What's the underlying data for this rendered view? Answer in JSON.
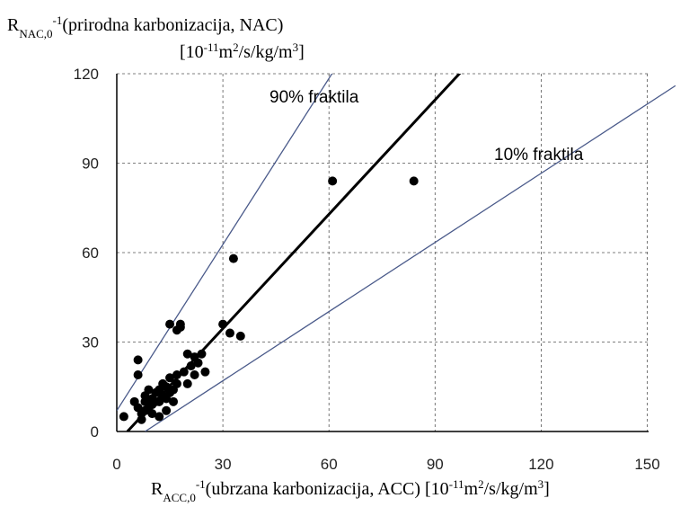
{
  "chart_data": {
    "type": "scatter",
    "ylabel": [
      [
        {
          "text": "R",
          "style": "normal"
        },
        {
          "text": "NAC,0",
          "style": "sub"
        },
        {
          "text": "-1",
          "style": "sup"
        },
        {
          "text": "(prirodna karbonizacija, NAC)",
          "style": "normal"
        }
      ],
      [
        {
          "text": "[10",
          "style": "normal"
        },
        {
          "text": "-11",
          "style": "sup"
        },
        {
          "text": "m",
          "style": "normal"
        },
        {
          "text": "2",
          "style": "sup"
        },
        {
          "text": "/s/kg/m",
          "style": "normal"
        },
        {
          "text": "3",
          "style": "sup"
        },
        {
          "text": "]",
          "style": "normal"
        }
      ]
    ],
    "xlabel": [
      {
        "text": "R",
        "style": "normal"
      },
      {
        "text": "ACC,0",
        "style": "sub"
      },
      {
        "text": "-1",
        "style": "sup"
      },
      {
        "text": "(ubrzana karbonizacija, ACC) [10",
        "style": "normal"
      },
      {
        "text": "-11",
        "style": "sup"
      },
      {
        "text": "m",
        "style": "normal"
      },
      {
        "text": "2",
        "style": "sup"
      },
      {
        "text": "/s/kg/m",
        "style": "normal"
      },
      {
        "text": "3",
        "style": "sup"
      },
      {
        "text": "]",
        "style": "normal"
      }
    ],
    "annotations": [
      "90% fraktila",
      "10% fraktila"
    ],
    "xlim": [
      0,
      158
    ],
    "ylim": [
      0,
      120
    ],
    "xticks": [
      0,
      30,
      60,
      90,
      120,
      150
    ],
    "yticks": [
      0,
      30,
      60,
      90,
      120
    ],
    "grid": true,
    "point_color": "#000000",
    "x": [
      2,
      6,
      6,
      5,
      6,
      7,
      7,
      8,
      8,
      9,
      10,
      10,
      11,
      12,
      12,
      13,
      13,
      14,
      14,
      15,
      15,
      16,
      16,
      17,
      17,
      18,
      17,
      18,
      15,
      19,
      20,
      20,
      21,
      22,
      22,
      23,
      24,
      25,
      30,
      32,
      33,
      35,
      61,
      84,
      12,
      14,
      10,
      8,
      9,
      11
    ],
    "y": [
      5,
      24,
      19,
      10,
      8,
      6,
      4,
      10,
      12,
      8,
      11,
      9,
      13,
      14,
      10,
      12,
      16,
      15,
      11,
      18,
      13,
      14,
      10,
      19,
      16,
      36,
      34,
      35,
      36,
      20,
      26,
      16,
      22,
      25,
      19,
      23,
      26,
      20,
      36,
      33,
      58,
      32,
      84,
      84,
      5,
      7,
      6,
      7,
      14,
      10
    ],
    "lines": [
      {
        "x": [
          3,
          100
        ],
        "y": [
          0,
          124
        ],
        "color": "#000000",
        "width": 3
      },
      {
        "x": [
          0,
          63
        ],
        "y": [
          7,
          124
        ],
        "color": "#4a5a8a",
        "width": 1.3
      },
      {
        "x": [
          8,
          158
        ],
        "y": [
          0,
          116
        ],
        "color": "#4a5a8a",
        "width": 1.3
      }
    ]
  }
}
